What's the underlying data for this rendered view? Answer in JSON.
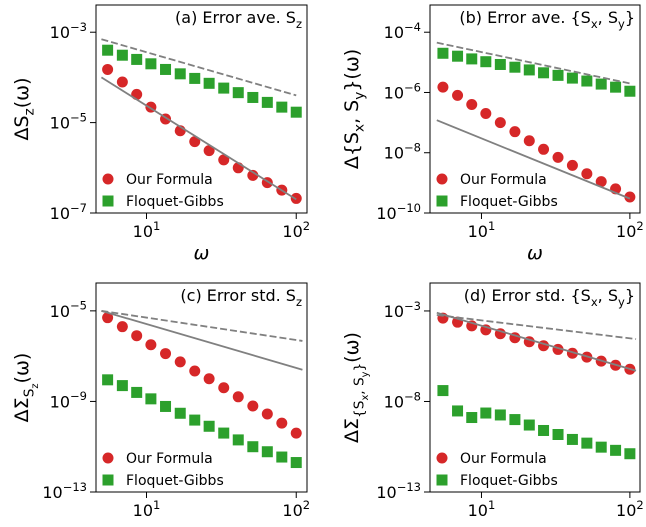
{
  "chart_data": [
    {
      "type": "scatter",
      "title": "(a) Error ave. S_{z}",
      "xlabel": "ω",
      "ylabel": "ΔS_{z}(ω)",
      "xscale": "log",
      "yscale": "log",
      "legend": "lower left",
      "xlim": [
        4.6,
        118
      ],
      "ylim": [
        1e-07,
        0.004
      ],
      "xticks": [
        {
          "value": 10,
          "label": "10^{1}"
        },
        {
          "value": 100,
          "label": "10^{2}"
        }
      ],
      "yticks": [
        {
          "value": 1e-07,
          "label": "10^{−7}"
        },
        {
          "value": 1e-05,
          "label": "10^{−5}"
        },
        {
          "value": 0.001,
          "label": "10^{−3}"
        }
      ],
      "x": [
        5.5,
        6.9,
        8.6,
        10.7,
        13.4,
        16.8,
        21,
        26.2,
        32.8,
        41,
        51.3,
        64.1,
        80.1,
        100
      ],
      "series": [
        {
          "name": "Our Formula",
          "color": "#d62728",
          "marker": "circle",
          "values": [
            0.00015,
            7.9e-05,
            4.2e-05,
            2.2e-05,
            1.2e-05,
            6.6e-06,
            3.8e-06,
            2.4e-06,
            1.5e-06,
            1e-06,
            6.8e-07,
            4.7e-07,
            3.2e-07,
            2.1e-07
          ]
        },
        {
          "name": "Floquet-Gibbs",
          "color": "#2ca02c",
          "marker": "square",
          "values": [
            0.0004,
            0.00031,
            0.00025,
            0.0002,
            0.00015,
            0.00012,
            9.5e-05,
            7.4e-05,
            5.8e-05,
            4.6e-05,
            3.6e-05,
            2.8e-05,
            2.2e-05,
            1.7e-05
          ]
        },
        {
          "color": "#808080",
          "style": "dashed",
          "x": [
            5,
            100
          ],
          "values": [
            0.0007,
            4e-05
          ]
        },
        {
          "color": "#808080",
          "style": "solid",
          "x": [
            5,
            100
          ],
          "values": [
            0.0001,
            2e-07
          ]
        }
      ]
    },
    {
      "type": "scatter",
      "title": "(b) Error ave. {S_{x}, S_{y}}",
      "xlabel": "ω",
      "ylabel": "Δ{S_{x}, S_{y}}(ω)",
      "xscale": "log",
      "yscale": "log",
      "legend": "lower left",
      "xlim": [
        4.5,
        117
      ],
      "ylim": [
        1e-10,
        0.0008
      ],
      "xticks": [
        {
          "value": 10,
          "label": "10^{1}"
        },
        {
          "value": 100,
          "label": "10^{2}"
        }
      ],
      "yticks": [
        {
          "value": 1e-10,
          "label": "10^{−10}"
        },
        {
          "value": 1e-08,
          "label": "10^{−8}"
        },
        {
          "value": 1e-06,
          "label": "10^{−6}"
        },
        {
          "value": 0.0001,
          "label": "10^{−4}"
        }
      ],
      "x": [
        5.5,
        6.9,
        8.6,
        10.7,
        13.4,
        16.8,
        21,
        26.2,
        32.8,
        41,
        51.3,
        64.1,
        80.1,
        100
      ],
      "series": [
        {
          "name": "Our Formula",
          "color": "#d62728",
          "marker": "circle",
          "values": [
            1.5e-06,
            8e-07,
            4e-07,
            2e-07,
            1e-07,
            5e-08,
            2.5e-08,
            1.3e-08,
            7e-09,
            3.8e-09,
            2e-09,
            1.1e-09,
            6.3e-10,
            3.4e-10
          ]
        },
        {
          "name": "Floquet-Gibbs",
          "color": "#2ca02c",
          "marker": "square",
          "values": [
            2e-05,
            1.6e-05,
            1.3e-05,
            1.05e-05,
            8.5e-06,
            6.9e-06,
            5.6e-06,
            4.5e-06,
            3.7e-06,
            3e-06,
            2.4e-06,
            1.9e-06,
            1.5e-06,
            1.1e-06
          ]
        },
        {
          "color": "#808080",
          "style": "dashed",
          "x": [
            5,
            100
          ],
          "values": [
            4.5e-05,
            2e-06
          ]
        },
        {
          "color": "#808080",
          "style": "solid",
          "x": [
            5,
            100
          ],
          "values": [
            1.2e-07,
            3e-10
          ]
        }
      ]
    },
    {
      "type": "scatter",
      "title": "(c) Error std. S_{z}",
      "xlabel": "ω",
      "ylabel": "ΔΣ_{S_{z}}(ω)",
      "xscale": "log",
      "yscale": "log",
      "legend": "lower left",
      "xlim": [
        4.6,
        118
      ],
      "ylim": [
        1e-13,
        0.00017
      ],
      "xticks": [
        {
          "value": 10,
          "label": "10^{1}"
        },
        {
          "value": 100,
          "label": "10^{2}"
        }
      ],
      "yticks": [
        {
          "value": 1e-13,
          "label": "10^{−13}"
        },
        {
          "value": 1e-09,
          "label": "10^{−9}"
        },
        {
          "value": 1e-05,
          "label": "10^{−5}"
        }
      ],
      "x": [
        5.5,
        6.9,
        8.6,
        10.7,
        13.4,
        16.8,
        21,
        26.2,
        32.8,
        41,
        51.3,
        64.1,
        80.1,
        100
      ],
      "series": [
        {
          "name": "Our Formula",
          "color": "#d62728",
          "marker": "circle",
          "values": [
            5e-06,
            2e-06,
            8e-07,
            3.2e-07,
            1.3e-07,
            5.6e-08,
            2.2e-08,
            1e-08,
            4e-09,
            1.6e-09,
            6.3e-10,
            2.8e-10,
            1.1e-10,
            4e-11
          ]
        },
        {
          "name": "Floquet-Gibbs",
          "color": "#2ca02c",
          "marker": "square",
          "values": [
            9e-09,
            5e-09,
            2.5e-09,
            1.3e-09,
            6e-10,
            3e-10,
            1.5e-10,
            8e-11,
            4e-11,
            2e-11,
            1e-11,
            6e-12,
            3.5e-12,
            2e-12
          ]
        },
        {
          "color": "#808080",
          "style": "dashed",
          "x": [
            5,
            110
          ],
          "values": [
            1e-05,
            4.7e-07
          ]
        },
        {
          "color": "#808080",
          "style": "solid",
          "x": [
            5,
            110
          ],
          "values": [
            1e-05,
            2.5e-08
          ]
        }
      ]
    },
    {
      "type": "scatter",
      "title": "(d) Error std. {S_{x}, S_{y}}",
      "xlabel": "ω",
      "ylabel": "ΔΣ_{{S_{x}, S_{y}}}(ω)",
      "xscale": "log",
      "yscale": "log",
      "legend": "lower left",
      "xlim": [
        4.5,
        117
      ],
      "ylim": [
        1e-13,
        0.035
      ],
      "xticks": [
        {
          "value": 10,
          "label": "10^{1}"
        },
        {
          "value": 100,
          "label": "10^{2}"
        }
      ],
      "yticks": [
        {
          "value": 1e-13,
          "label": "10^{−13}"
        },
        {
          "value": 1e-08,
          "label": "10^{−8}"
        },
        {
          "value": 0.001,
          "label": "10^{−3}"
        }
      ],
      "x": [
        5.5,
        6.9,
        8.6,
        10.7,
        13.4,
        16.8,
        21,
        26.2,
        32.8,
        41,
        51.3,
        64.1,
        80.1,
        100
      ],
      "series": [
        {
          "name": "Our Formula",
          "color": "#d62728",
          "marker": "circle",
          "values": [
            0.0004,
            0.00024,
            0.00015,
            9e-05,
            5.5e-05,
            3.3e-05,
            2e-05,
            1.2e-05,
            7.5e-06,
            4.6e-06,
            2.8e-06,
            1.7e-06,
            1e-06,
            6e-07
          ]
        },
        {
          "name": "Floquet-Gibbs",
          "color": "#2ca02c",
          "marker": "square",
          "values": [
            4e-08,
            3e-09,
            1.3e-09,
            2.3e-09,
            1.8e-09,
            1e-09,
            5e-10,
            2.5e-10,
            1.5e-10,
            8e-11,
            5e-11,
            3e-11,
            2e-11,
            1.3e-11
          ]
        },
        {
          "color": "#808080",
          "style": "dashed",
          "x": [
            5,
            110
          ],
          "values": [
            0.0006,
            2.8e-05
          ]
        },
        {
          "color": "#808080",
          "style": "solid",
          "x": [
            5,
            110
          ],
          "values": [
            0.0008,
            5e-07
          ]
        }
      ]
    }
  ]
}
